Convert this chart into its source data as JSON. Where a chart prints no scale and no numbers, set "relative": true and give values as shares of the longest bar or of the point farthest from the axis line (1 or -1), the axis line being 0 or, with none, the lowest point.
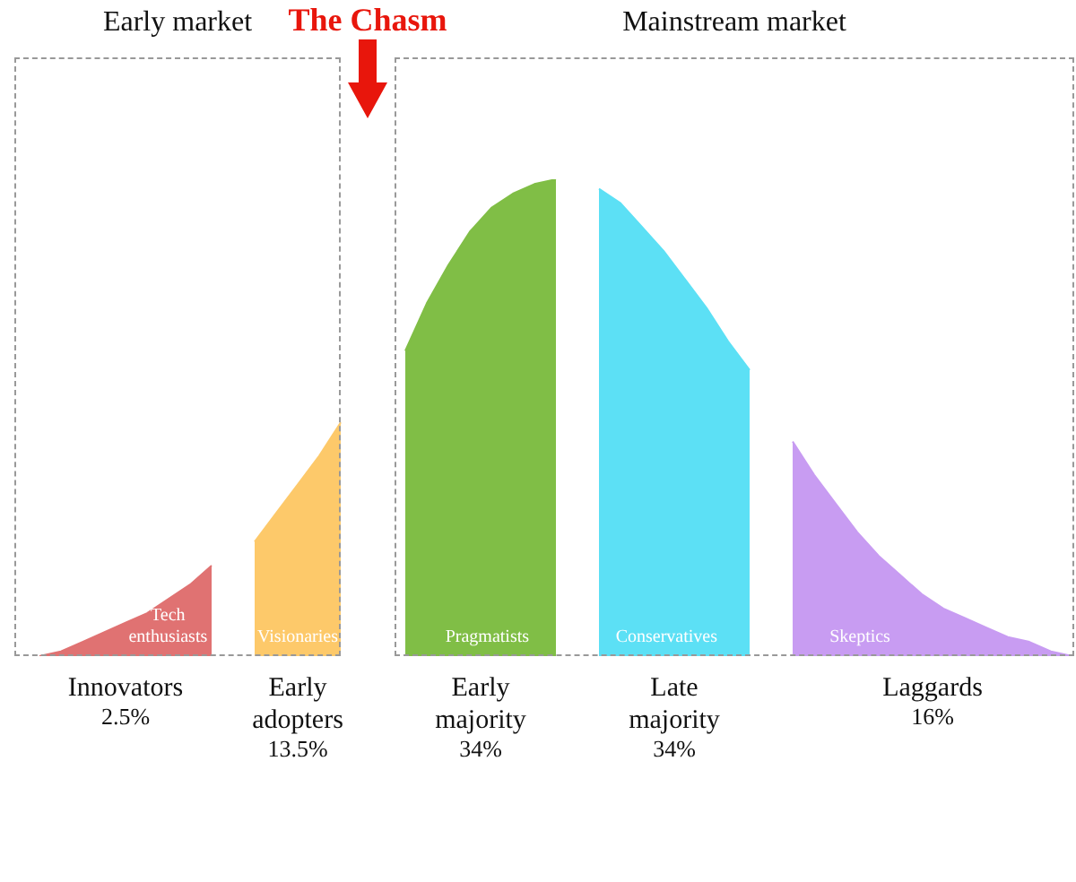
{
  "chart_data": {
    "type": "area",
    "relative": true,
    "categories": [
      null,
      null,
      null,
      null,
      null,
      null,
      null,
      null,
      null,
      null,
      null,
      null,
      null,
      null,
      null,
      null,
      null,
      null,
      null,
      null,
      null,
      null,
      null,
      null,
      null,
      null,
      null,
      null,
      null,
      null,
      null,
      null,
      null,
      null,
      null,
      null,
      null,
      null,
      null,
      null,
      null,
      null,
      null,
      null,
      null,
      null,
      null,
      null,
      null
    ],
    "series": [
      {
        "name": "Innovators",
        "color": "#e07272",
        "values": [
          0,
          0.01,
          0.03,
          0.05,
          0.07,
          0.09,
          0.12,
          0.15,
          0.19,
          null,
          null,
          null,
          null,
          null,
          null,
          null,
          null,
          null,
          null,
          null,
          null,
          null,
          null,
          null,
          null,
          null,
          null,
          null,
          null,
          null,
          null,
          null,
          null,
          null,
          null,
          null,
          null,
          null,
          null,
          null,
          null,
          null,
          null,
          null,
          null,
          null,
          null,
          null,
          null
        ]
      },
      {
        "name": "Early adopters",
        "color": "#fdc96a",
        "values": [
          null,
          null,
          null,
          null,
          null,
          null,
          null,
          null,
          null,
          null,
          0.24,
          0.3,
          0.36,
          0.42,
          0.49,
          null,
          null,
          null,
          null,
          null,
          null,
          null,
          null,
          null,
          null,
          null,
          null,
          null,
          null,
          null,
          null,
          null,
          null,
          null,
          null,
          null,
          null,
          null,
          null,
          null,
          null,
          null,
          null,
          null,
          null,
          null,
          null,
          null,
          null
        ]
      },
      {
        "name": "Early majority",
        "color": "#80be46",
        "values": [
          null,
          null,
          null,
          null,
          null,
          null,
          null,
          null,
          null,
          null,
          null,
          null,
          null,
          null,
          null,
          null,
          null,
          0.64,
          0.74,
          0.82,
          0.89,
          0.94,
          0.97,
          0.99,
          1,
          null,
          null,
          null,
          null,
          null,
          null,
          null,
          null,
          null,
          null,
          null,
          null,
          null,
          null,
          null,
          null,
          null,
          null,
          null,
          null,
          null,
          null,
          null,
          null
        ]
      },
      {
        "name": "Late majority",
        "color": "#5ce0f5",
        "values": [
          null,
          null,
          null,
          null,
          null,
          null,
          null,
          null,
          null,
          null,
          null,
          null,
          null,
          null,
          null,
          null,
          null,
          null,
          null,
          null,
          null,
          null,
          null,
          null,
          null,
          null,
          0.98,
          0.95,
          0.9,
          0.85,
          0.79,
          0.73,
          0.66,
          0.6,
          null,
          null,
          null,
          null,
          null,
          null,
          null,
          null,
          null,
          null,
          null,
          null,
          null,
          null,
          null
        ]
      },
      {
        "name": "Laggards",
        "color": "#c89cf2",
        "values": [
          null,
          null,
          null,
          null,
          null,
          null,
          null,
          null,
          null,
          null,
          null,
          null,
          null,
          null,
          null,
          null,
          null,
          null,
          null,
          null,
          null,
          null,
          null,
          null,
          null,
          null,
          null,
          null,
          null,
          null,
          null,
          null,
          null,
          null,
          null,
          0.45,
          0.38,
          0.32,
          0.26,
          0.21,
          0.17,
          0.13,
          0.1,
          0.08,
          0.06,
          0.04,
          0.03,
          0.01,
          0
        ]
      }
    ],
    "annotations": [
      "Early market",
      "The Chasm",
      "Mainstream market",
      "Tech enthusiasts",
      "Visionaries",
      "Pragmatists",
      "Conservatives",
      "Skeptics",
      "2.5%",
      "13.5%",
      "34%",
      "34%",
      "16%"
    ]
  }
}
